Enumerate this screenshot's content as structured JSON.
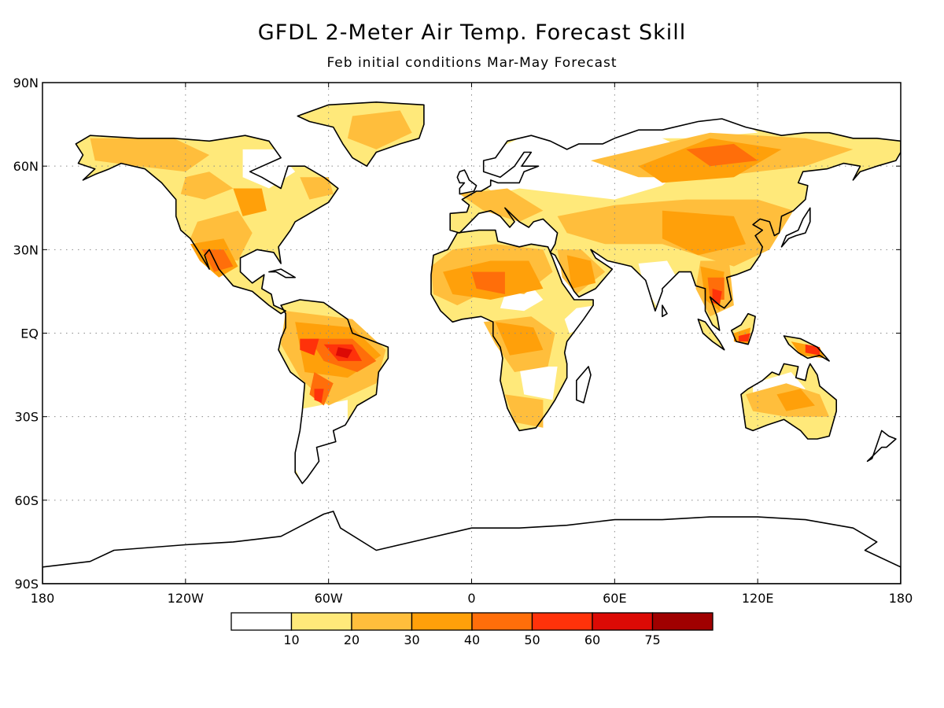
{
  "title": "GFDL 2-Meter Air Temp. Forecast Skill",
  "subtitle": "Feb initial conditions   Mar-May Forecast",
  "map": {
    "lon_range": [
      -180,
      180
    ],
    "lat_range": [
      -90,
      90
    ],
    "grid": true,
    "lat_ticks": [
      {
        "value": 90,
        "label": "90N"
      },
      {
        "value": 60,
        "label": "60N"
      },
      {
        "value": 30,
        "label": "30N"
      },
      {
        "value": 0,
        "label": "EQ"
      },
      {
        "value": -30,
        "label": "30S"
      },
      {
        "value": -60,
        "label": "60S"
      },
      {
        "value": -90,
        "label": "90S"
      }
    ],
    "lon_ticks": [
      {
        "value": -180,
        "label": "180"
      },
      {
        "value": -120,
        "label": "120W"
      },
      {
        "value": -60,
        "label": "60W"
      },
      {
        "value": 0,
        "label": "0"
      },
      {
        "value": 60,
        "label": "60E"
      },
      {
        "value": 120,
        "label": "120E"
      },
      {
        "value": 180,
        "label": "180"
      }
    ]
  },
  "colorbar": {
    "colors": [
      "#ffffff",
      "#ffe97a",
      "#ffbe3c",
      "#ffa00a",
      "#ff6e0a",
      "#ff320a",
      "#dc0a05",
      "#a00000"
    ],
    "labels": [
      "10",
      "20",
      "30",
      "40",
      "50",
      "60",
      "75"
    ]
  }
}
